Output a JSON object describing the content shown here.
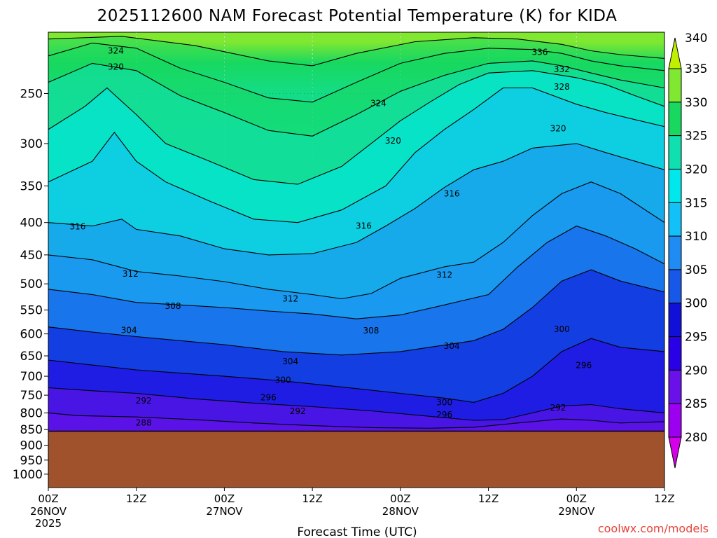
{
  "chart_data": {
    "type": "heatmap",
    "title": "2025112600 NAM Forecast Potential Temperature (K) for KIDA",
    "xlabel": "Forecast Time (UTC)",
    "ylabel": "",
    "y_axis": {
      "scale": "log",
      "reversed": true,
      "range": [
        200,
        1050
      ],
      "ticks": [
        250,
        300,
        350,
        400,
        450,
        500,
        550,
        600,
        650,
        700,
        750,
        800,
        850,
        900,
        950,
        1000
      ]
    },
    "x_axis": {
      "range_hours": [
        0,
        84
      ],
      "ticks": [
        {
          "hour": 0,
          "label": "00Z",
          "date": "26NOV",
          "year": "2025"
        },
        {
          "hour": 12,
          "label": "12Z",
          "date": "",
          "year": ""
        },
        {
          "hour": 24,
          "label": "00Z",
          "date": "27NOV",
          "year": ""
        },
        {
          "hour": 36,
          "label": "12Z",
          "date": "",
          "year": ""
        },
        {
          "hour": 48,
          "label": "00Z",
          "date": "28NOV",
          "year": ""
        },
        {
          "hour": 60,
          "label": "12Z",
          "date": "",
          "year": ""
        },
        {
          "hour": 72,
          "label": "00Z",
          "date": "29NOV",
          "year": ""
        },
        {
          "hour": 84,
          "label": "12Z",
          "date": "",
          "year": ""
        }
      ]
    },
    "grid": "dotted",
    "colorbar": {
      "placement": "right",
      "levels": [
        280,
        285,
        290,
        295,
        300,
        305,
        310,
        315,
        320,
        325,
        330,
        335,
        340
      ],
      "labels": [
        "280",
        "285",
        "290",
        "295",
        "300",
        "305",
        "310",
        "315",
        "320",
        "325",
        "330",
        "335",
        "340"
      ],
      "colors": [
        "#d400e8",
        "#9c00f0",
        "#6a10e8",
        "#2a00e6",
        "#1010d8",
        "#1858e8",
        "#1e8cf2",
        "#14c0f8",
        "#00e8ec",
        "#10e0b0",
        "#18d860",
        "#80e830",
        "#c0f000"
      ]
    },
    "ground": {
      "pressure_hpa": 855,
      "color": "#a0522d"
    },
    "isentropes": [
      {
        "value": 288,
        "points": [
          [
            0,
            864
          ],
          [
            8,
            861
          ],
          [
            16,
            863
          ],
          [
            24,
            866
          ],
          [
            32,
            862
          ],
          [
            40,
            861
          ],
          [
            48,
            864
          ],
          [
            56,
            866
          ],
          [
            64,
            865
          ],
          [
            72,
            864
          ],
          [
            84,
            864
          ]
        ]
      },
      {
        "value": 292,
        "points": [
          [
            0,
            800
          ],
          [
            4,
            808
          ],
          [
            12,
            812
          ],
          [
            20,
            820
          ],
          [
            28,
            830
          ],
          [
            36,
            838
          ],
          [
            44,
            844
          ],
          [
            52,
            846
          ],
          [
            58,
            843
          ],
          [
            64,
            830
          ],
          [
            70,
            818
          ],
          [
            74,
            822
          ],
          [
            78,
            830
          ],
          [
            84,
            826
          ]
        ]
      },
      {
        "value": 296,
        "points": [
          [
            0,
            730
          ],
          [
            6,
            738
          ],
          [
            12,
            745
          ],
          [
            20,
            760
          ],
          [
            28,
            772
          ],
          [
            36,
            782
          ],
          [
            44,
            794
          ],
          [
            52,
            810
          ],
          [
            58,
            822
          ],
          [
            62,
            820
          ],
          [
            66,
            800
          ],
          [
            70,
            780
          ],
          [
            74,
            776
          ],
          [
            78,
            788
          ],
          [
            84,
            800
          ]
        ]
      },
      {
        "value": 300,
        "points": [
          [
            0,
            660
          ],
          [
            6,
            672
          ],
          [
            12,
            684
          ],
          [
            18,
            692
          ],
          [
            24,
            700
          ],
          [
            32,
            712
          ],
          [
            40,
            728
          ],
          [
            48,
            745
          ],
          [
            54,
            758
          ],
          [
            58,
            770
          ],
          [
            62,
            745
          ],
          [
            66,
            700
          ],
          [
            70,
            640
          ],
          [
            74,
            610
          ],
          [
            78,
            630
          ],
          [
            84,
            640
          ]
        ]
      },
      {
        "value": 304,
        "points": [
          [
            0,
            585
          ],
          [
            6,
            596
          ],
          [
            12,
            606
          ],
          [
            18,
            615
          ],
          [
            24,
            624
          ],
          [
            32,
            640
          ],
          [
            40,
            648
          ],
          [
            48,
            640
          ],
          [
            54,
            625
          ],
          [
            58,
            615
          ],
          [
            62,
            590
          ],
          [
            66,
            545
          ],
          [
            70,
            495
          ],
          [
            74,
            475
          ],
          [
            78,
            495
          ],
          [
            84,
            515
          ]
        ]
      },
      {
        "value": 308,
        "points": [
          [
            0,
            510
          ],
          [
            6,
            520
          ],
          [
            12,
            535
          ],
          [
            18,
            540
          ],
          [
            24,
            545
          ],
          [
            30,
            552
          ],
          [
            36,
            558
          ],
          [
            42,
            568
          ],
          [
            48,
            560
          ],
          [
            54,
            540
          ],
          [
            60,
            520
          ],
          [
            64,
            470
          ],
          [
            68,
            430
          ],
          [
            72,
            405
          ],
          [
            76,
            420
          ],
          [
            80,
            440
          ],
          [
            84,
            465
          ]
        ]
      },
      {
        "value": 312,
        "points": [
          [
            0,
            450
          ],
          [
            6,
            458
          ],
          [
            12,
            478
          ],
          [
            18,
            486
          ],
          [
            24,
            496
          ],
          [
            30,
            510
          ],
          [
            36,
            520
          ],
          [
            40,
            528
          ],
          [
            44,
            518
          ],
          [
            48,
            490
          ],
          [
            54,
            470
          ],
          [
            58,
            462
          ],
          [
            62,
            430
          ],
          [
            66,
            390
          ],
          [
            70,
            360
          ],
          [
            74,
            345
          ],
          [
            78,
            360
          ],
          [
            84,
            400
          ]
        ]
      },
      {
        "value": 316,
        "points": [
          [
            0,
            400
          ],
          [
            6,
            405
          ],
          [
            10,
            395
          ],
          [
            12,
            410
          ],
          [
            18,
            420
          ],
          [
            24,
            440
          ],
          [
            30,
            450
          ],
          [
            36,
            448
          ],
          [
            42,
            430
          ],
          [
            46,
            405
          ],
          [
            50,
            380
          ],
          [
            54,
            352
          ],
          [
            58,
            330
          ],
          [
            62,
            320
          ],
          [
            66,
            305
          ],
          [
            72,
            300
          ],
          [
            76,
            310
          ],
          [
            80,
            320
          ],
          [
            84,
            330
          ]
        ]
      },
      {
        "value": 320,
        "points": [
          [
            0,
            345
          ],
          [
            6,
            320
          ],
          [
            9,
            288
          ],
          [
            12,
            320
          ],
          [
            16,
            345
          ],
          [
            22,
            370
          ],
          [
            28,
            395
          ],
          [
            34,
            400
          ],
          [
            40,
            382
          ],
          [
            46,
            350
          ],
          [
            50,
            310
          ],
          [
            54,
            285
          ],
          [
            58,
            265
          ],
          [
            62,
            245
          ],
          [
            66,
            245
          ],
          [
            72,
            260
          ],
          [
            76,
            268
          ],
          [
            80,
            275
          ],
          [
            84,
            282
          ]
        ]
      },
      {
        "value": 324,
        "points": [
          [
            0,
            285
          ],
          [
            5,
            262
          ],
          [
            8,
            245
          ],
          [
            12,
            270
          ],
          [
            16,
            300
          ],
          [
            22,
            320
          ],
          [
            28,
            342
          ],
          [
            34,
            348
          ],
          [
            40,
            326
          ],
          [
            44,
            300
          ],
          [
            48,
            276
          ],
          [
            52,
            258
          ],
          [
            56,
            242
          ],
          [
            60,
            232
          ],
          [
            66,
            230
          ],
          [
            72,
            236
          ],
          [
            76,
            242
          ],
          [
            80,
            252
          ],
          [
            84,
            262
          ]
        ]
      },
      {
        "value": 328,
        "points": [
          [
            0,
            240
          ],
          [
            6,
            224
          ],
          [
            12,
            230
          ],
          [
            18,
            252
          ],
          [
            24,
            268
          ],
          [
            30,
            286
          ],
          [
            36,
            292
          ],
          [
            42,
            270
          ],
          [
            48,
            248
          ],
          [
            54,
            234
          ],
          [
            60,
            224
          ],
          [
            66,
            222
          ],
          [
            70,
            226
          ],
          [
            74,
            232
          ],
          [
            78,
            238
          ],
          [
            84,
            245
          ]
        ]
      },
      {
        "value": 332,
        "points": [
          [
            0,
            218
          ],
          [
            6,
            208
          ],
          [
            12,
            212
          ],
          [
            18,
            228
          ],
          [
            24,
            240
          ],
          [
            30,
            254
          ],
          [
            36,
            258
          ],
          [
            42,
            240
          ],
          [
            48,
            224
          ],
          [
            54,
            216
          ],
          [
            60,
            212
          ],
          [
            66,
            213
          ],
          [
            70,
            216
          ],
          [
            74,
            222
          ],
          [
            78,
            226
          ],
          [
            84,
            230
          ]
        ]
      },
      {
        "value": 336,
        "points": [
          [
            0,
            205
          ],
          [
            10,
            203
          ],
          [
            20,
            210
          ],
          [
            30,
            222
          ],
          [
            36,
            226
          ],
          [
            42,
            216
          ],
          [
            50,
            207
          ],
          [
            58,
            204
          ],
          [
            64,
            205
          ],
          [
            70,
            209
          ],
          [
            74,
            214
          ],
          [
            78,
            217
          ],
          [
            84,
            220
          ]
        ]
      }
    ],
    "contour_labels": [
      {
        "text": "324",
        "hour": 9.2,
        "pressure": 214
      },
      {
        "text": "320",
        "hour": 9.2,
        "pressure": 227
      },
      {
        "text": "316",
        "hour": 4.0,
        "pressure": 406
      },
      {
        "text": "312",
        "hour": 11.2,
        "pressure": 482
      },
      {
        "text": "308",
        "hour": 17.0,
        "pressure": 542
      },
      {
        "text": "304",
        "hour": 11.0,
        "pressure": 592
      },
      {
        "text": "292",
        "hour": 13.0,
        "pressure": 765
      },
      {
        "text": "288",
        "hour": 13.0,
        "pressure": 829
      },
      {
        "text": "304",
        "hour": 33.0,
        "pressure": 663
      },
      {
        "text": "300",
        "hour": 32.0,
        "pressure": 710
      },
      {
        "text": "296",
        "hour": 30.0,
        "pressure": 757
      },
      {
        "text": "292",
        "hour": 34.0,
        "pressure": 795
      },
      {
        "text": "312",
        "hour": 33.0,
        "pressure": 528
      },
      {
        "text": "324",
        "hour": 45.0,
        "pressure": 259
      },
      {
        "text": "320",
        "hour": 47.0,
        "pressure": 297
      },
      {
        "text": "316",
        "hour": 43.0,
        "pressure": 405
      },
      {
        "text": "308",
        "hour": 44.0,
        "pressure": 593
      },
      {
        "text": "312",
        "hour": 54.0,
        "pressure": 484
      },
      {
        "text": "316",
        "hour": 55.0,
        "pressure": 360
      },
      {
        "text": "304",
        "hour": 55.0,
        "pressure": 627
      },
      {
        "text": "300",
        "hour": 54.0,
        "pressure": 770
      },
      {
        "text": "296",
        "hour": 54.0,
        "pressure": 805
      },
      {
        "text": "336",
        "hour": 67.0,
        "pressure": 215
      },
      {
        "text": "332",
        "hour": 70.0,
        "pressure": 229
      },
      {
        "text": "328",
        "hour": 70.0,
        "pressure": 244
      },
      {
        "text": "320",
        "hour": 69.5,
        "pressure": 284
      },
      {
        "text": "300",
        "hour": 70.0,
        "pressure": 590
      },
      {
        "text": "296",
        "hour": 73.0,
        "pressure": 673
      },
      {
        "text": "292",
        "hour": 69.5,
        "pressure": 785
      }
    ]
  },
  "credit": "coolwx.com/models"
}
